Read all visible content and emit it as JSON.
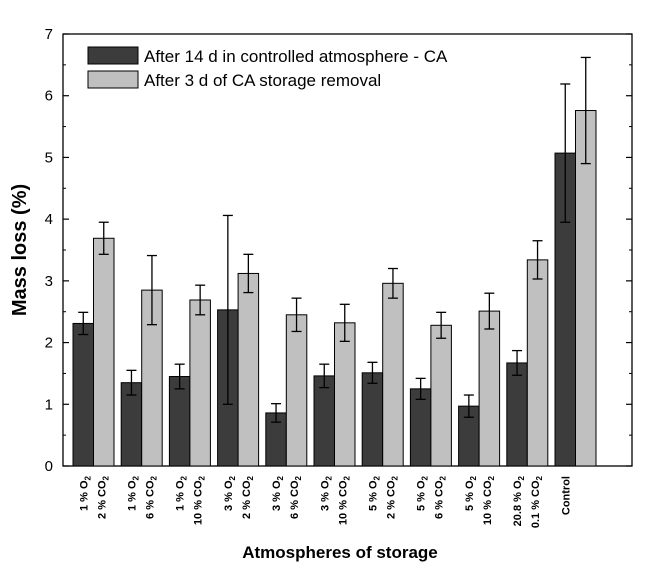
{
  "chart_data": {
    "type": "bar",
    "xlabel": "Atmospheres of storage",
    "ylabel": "Mass loss (%)",
    "ylim": [
      0,
      7
    ],
    "yticks": [
      0,
      1,
      2,
      3,
      4,
      5,
      6,
      7
    ],
    "categories": [
      {
        "line1": "1 % O",
        "line1_sub": "2",
        "line2": "2 % CO",
        "line2_sub": "2"
      },
      {
        "line1": "1 % O",
        "line1_sub": "2",
        "line2": "6 % CO",
        "line2_sub": "2"
      },
      {
        "line1": "1 % O",
        "line1_sub": "2",
        "line2": "10 % CO",
        "line2_sub": "2"
      },
      {
        "line1": "3 % O",
        "line1_sub": "2",
        "line2": "2 % CO",
        "line2_sub": "2"
      },
      {
        "line1": "3 % O",
        "line1_sub": "2",
        "line2": "6 % CO",
        "line2_sub": "2"
      },
      {
        "line1": "3 % O",
        "line1_sub": "2",
        "line2": "10 % CO",
        "line2_sub": "2"
      },
      {
        "line1": "5 % O",
        "line1_sub": "2",
        "line2": "2 % CO",
        "line2_sub": "2"
      },
      {
        "line1": "5 % O",
        "line1_sub": "2",
        "line2": "6 % CO",
        "line2_sub": "2"
      },
      {
        "line1": "5 % O",
        "line1_sub": "2",
        "line2": "10 % CO",
        "line2_sub": "2"
      },
      {
        "line1": "20.8 % O",
        "line1_sub": "2",
        "line2": "0.1 % CO",
        "line2_sub": "2"
      },
      {
        "line1": "Control",
        "line1_sub": "",
        "line2": "",
        "line2_sub": ""
      }
    ],
    "series": [
      {
        "name": "After 14 d in controlled atmosphere - CA",
        "color": "#3c3c3c",
        "values": [
          2.31,
          1.35,
          1.45,
          2.53,
          0.86,
          1.46,
          1.51,
          1.25,
          0.97,
          1.67,
          5.07
        ],
        "errors": [
          0.18,
          0.2,
          0.2,
          1.53,
          0.15,
          0.19,
          0.17,
          0.17,
          0.18,
          0.2,
          1.12
        ]
      },
      {
        "name": "After 3 d of CA storage removal",
        "color": "#c0c0c0",
        "values": [
          3.69,
          2.85,
          2.69,
          3.12,
          2.45,
          2.32,
          2.96,
          2.28,
          2.51,
          3.34,
          5.76
        ],
        "errors": [
          0.26,
          0.56,
          0.24,
          0.31,
          0.27,
          0.3,
          0.24,
          0.21,
          0.29,
          0.31,
          0.86
        ]
      }
    ],
    "legend_position": "top-left",
    "grid": false
  }
}
